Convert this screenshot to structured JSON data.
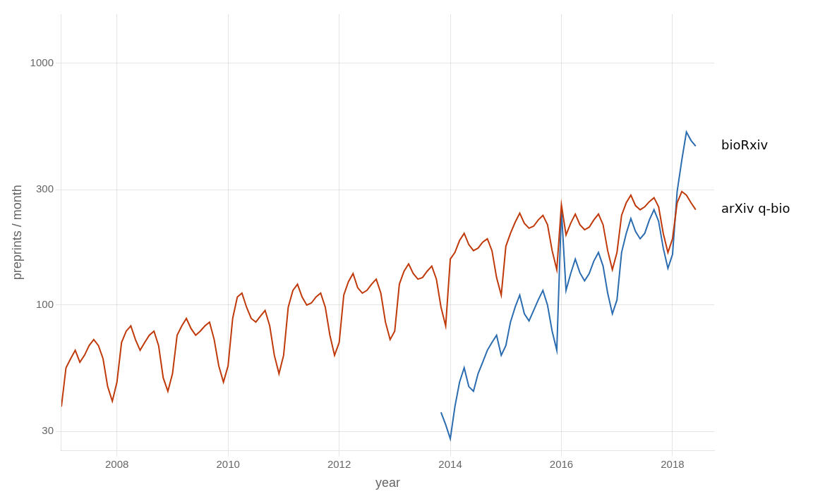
{
  "chart_data": {
    "type": "line",
    "xlabel": "year",
    "ylabel": "preprints / month",
    "log": "y",
    "grid": true,
    "xlim": [
      2007.0,
      2018.75
    ],
    "xticks": [
      2008,
      2010,
      2012,
      2014,
      2016,
      2018
    ],
    "ylim": [
      25,
      1600
    ],
    "yticks": [
      30,
      100,
      300,
      1000
    ],
    "series": [
      {
        "name": "arXiv q-bio",
        "color": "#c0390a",
        "x": [
          2007.0,
          2007.083,
          2007.167,
          2007.25,
          2007.333,
          2007.417,
          2007.5,
          2007.583,
          2007.667,
          2007.75,
          2007.833,
          2007.917,
          2008.0,
          2008.083,
          2008.167,
          2008.25,
          2008.333,
          2008.417,
          2008.5,
          2008.583,
          2008.667,
          2008.75,
          2008.833,
          2008.917,
          2009.0,
          2009.083,
          2009.167,
          2009.25,
          2009.333,
          2009.417,
          2009.5,
          2009.583,
          2009.667,
          2009.75,
          2009.833,
          2009.917,
          2010.0,
          2010.083,
          2010.167,
          2010.25,
          2010.333,
          2010.417,
          2010.5,
          2010.583,
          2010.667,
          2010.75,
          2010.833,
          2010.917,
          2011.0,
          2011.083,
          2011.167,
          2011.25,
          2011.333,
          2011.417,
          2011.5,
          2011.583,
          2011.667,
          2011.75,
          2011.833,
          2011.917,
          2012.0,
          2012.083,
          2012.167,
          2012.25,
          2012.333,
          2012.417,
          2012.5,
          2012.583,
          2012.667,
          2012.75,
          2012.833,
          2012.917,
          2013.0,
          2013.083,
          2013.167,
          2013.25,
          2013.333,
          2013.417,
          2013.5,
          2013.583,
          2013.667,
          2013.75,
          2013.833,
          2013.917,
          2014.0,
          2014.083,
          2014.167,
          2014.25,
          2014.333,
          2014.417,
          2014.5,
          2014.583,
          2014.667,
          2014.75,
          2014.833,
          2014.917,
          2015.0,
          2015.083,
          2015.167,
          2015.25,
          2015.333,
          2015.417,
          2015.5,
          2015.583,
          2015.667,
          2015.75,
          2015.833,
          2015.917,
          2016.0,
          2016.083,
          2016.167,
          2016.25,
          2016.333,
          2016.417,
          2016.5,
          2016.583,
          2016.667,
          2016.75,
          2016.833,
          2016.917,
          2017.0,
          2017.083,
          2017.167,
          2017.25,
          2017.333,
          2017.417,
          2017.5,
          2017.583,
          2017.667,
          2017.75,
          2017.833,
          2017.917,
          2018.0,
          2018.083,
          2018.167,
          2018.25,
          2018.333,
          2018.417
        ],
        "values": [
          38,
          55,
          60,
          65,
          58,
          62,
          68,
          72,
          68,
          60,
          46,
          40,
          48,
          70,
          78,
          82,
          72,
          65,
          70,
          75,
          78,
          68,
          50,
          44,
          52,
          75,
          82,
          88,
          80,
          75,
          78,
          82,
          85,
          72,
          56,
          48,
          56,
          88,
          108,
          112,
          98,
          88,
          85,
          90,
          95,
          82,
          62,
          52,
          62,
          98,
          115,
          122,
          108,
          100,
          102,
          108,
          112,
          98,
          75,
          62,
          70,
          110,
          125,
          135,
          118,
          112,
          115,
          122,
          128,
          112,
          85,
          72,
          78,
          122,
          138,
          148,
          135,
          128,
          130,
          138,
          145,
          128,
          98,
          82,
          155,
          165,
          185,
          198,
          178,
          168,
          172,
          182,
          188,
          168,
          130,
          110,
          175,
          198,
          220,
          240,
          218,
          208,
          212,
          225,
          235,
          215,
          168,
          140,
          260,
          195,
          218,
          238,
          215,
          205,
          210,
          225,
          238,
          215,
          168,
          140,
          165,
          235,
          265,
          285,
          258,
          248,
          255,
          268,
          278,
          255,
          198,
          165,
          188,
          265,
          295,
          285,
          265,
          248
        ]
      },
      {
        "name": "bioRxiv",
        "color": "#2b6cb0",
        "x": [
          2013.833,
          2013.917,
          2014.0,
          2014.083,
          2014.167,
          2014.25,
          2014.333,
          2014.417,
          2014.5,
          2014.583,
          2014.667,
          2014.75,
          2014.833,
          2014.917,
          2015.0,
          2015.083,
          2015.167,
          2015.25,
          2015.333,
          2015.417,
          2015.5,
          2015.583,
          2015.667,
          2015.75,
          2015.833,
          2015.917,
          2016.0,
          2016.083,
          2016.167,
          2016.25,
          2016.333,
          2016.417,
          2016.5,
          2016.583,
          2016.667,
          2016.75,
          2016.833,
          2016.917,
          2017.0,
          2017.083,
          2017.167,
          2017.25,
          2017.333,
          2017.417,
          2017.5,
          2017.583,
          2017.667,
          2017.75,
          2017.833,
          2017.917,
          2018.0,
          2018.083,
          2018.167,
          2018.25,
          2018.333,
          2018.417
        ],
        "values": [
          36,
          32,
          28,
          38,
          48,
          55,
          46,
          44,
          52,
          58,
          65,
          70,
          75,
          62,
          68,
          85,
          98,
          110,
          92,
          86,
          95,
          105,
          115,
          100,
          78,
          65,
          248,
          115,
          135,
          155,
          136,
          126,
          135,
          152,
          165,
          145,
          112,
          92,
          105,
          165,
          198,
          228,
          202,
          188,
          198,
          225,
          248,
          222,
          172,
          142,
          162,
          295,
          398,
          520,
          480,
          455
        ]
      }
    ]
  }
}
